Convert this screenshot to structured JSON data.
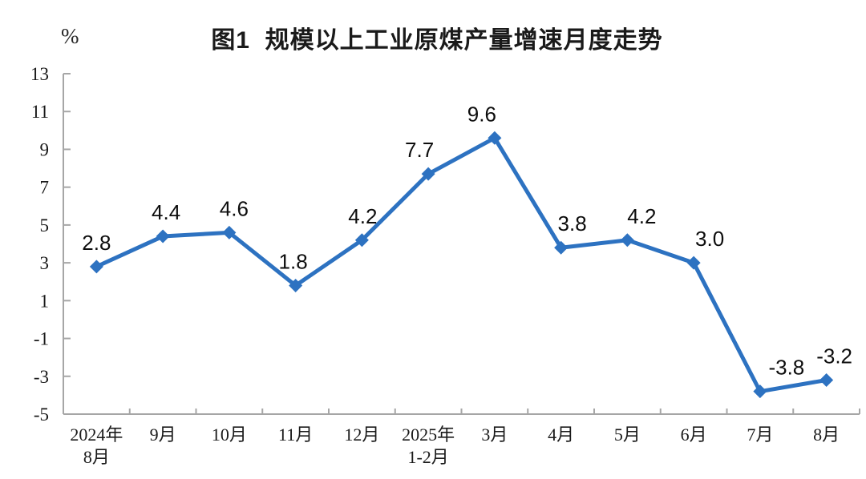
{
  "chart_data": {
    "type": "line",
    "title": "图1  规模以上工业原煤产量增速月度走势",
    "unit_label": "%",
    "categories": [
      [
        "2024年",
        "8月"
      ],
      [
        "9月"
      ],
      [
        "10月"
      ],
      [
        "11月"
      ],
      [
        "12月"
      ],
      [
        "2025年",
        "1-2月"
      ],
      [
        "3月"
      ],
      [
        "4月"
      ],
      [
        "5月"
      ],
      [
        "6月"
      ],
      [
        "7月"
      ],
      [
        "8月"
      ]
    ],
    "values": [
      2.8,
      4.4,
      4.6,
      1.8,
      4.2,
      7.7,
      9.6,
      3.8,
      4.2,
      3.0,
      -3.8,
      -3.2
    ],
    "data_labels": [
      "2.8",
      "4.4",
      "4.6",
      "1.8",
      "4.2",
      "7.7",
      "9.6",
      "3.8",
      "4.2",
      "3.0",
      "-3.8",
      "-3.2"
    ],
    "yticks": [
      13,
      11,
      9,
      7,
      5,
      3,
      1,
      -1,
      -3,
      -5
    ],
    "ylim": [
      -5,
      13
    ],
    "grid": false,
    "legend": "none",
    "marker": "diamond",
    "line_color": "#2D72C1",
    "axis_color": "#A6A6A6",
    "text_color": "#1a1a1a",
    "label_dx": [
      0,
      4,
      6,
      -3,
      1,
      -11,
      -16,
      14,
      18,
      20,
      33,
      10
    ],
    "label_dy": -21
  }
}
